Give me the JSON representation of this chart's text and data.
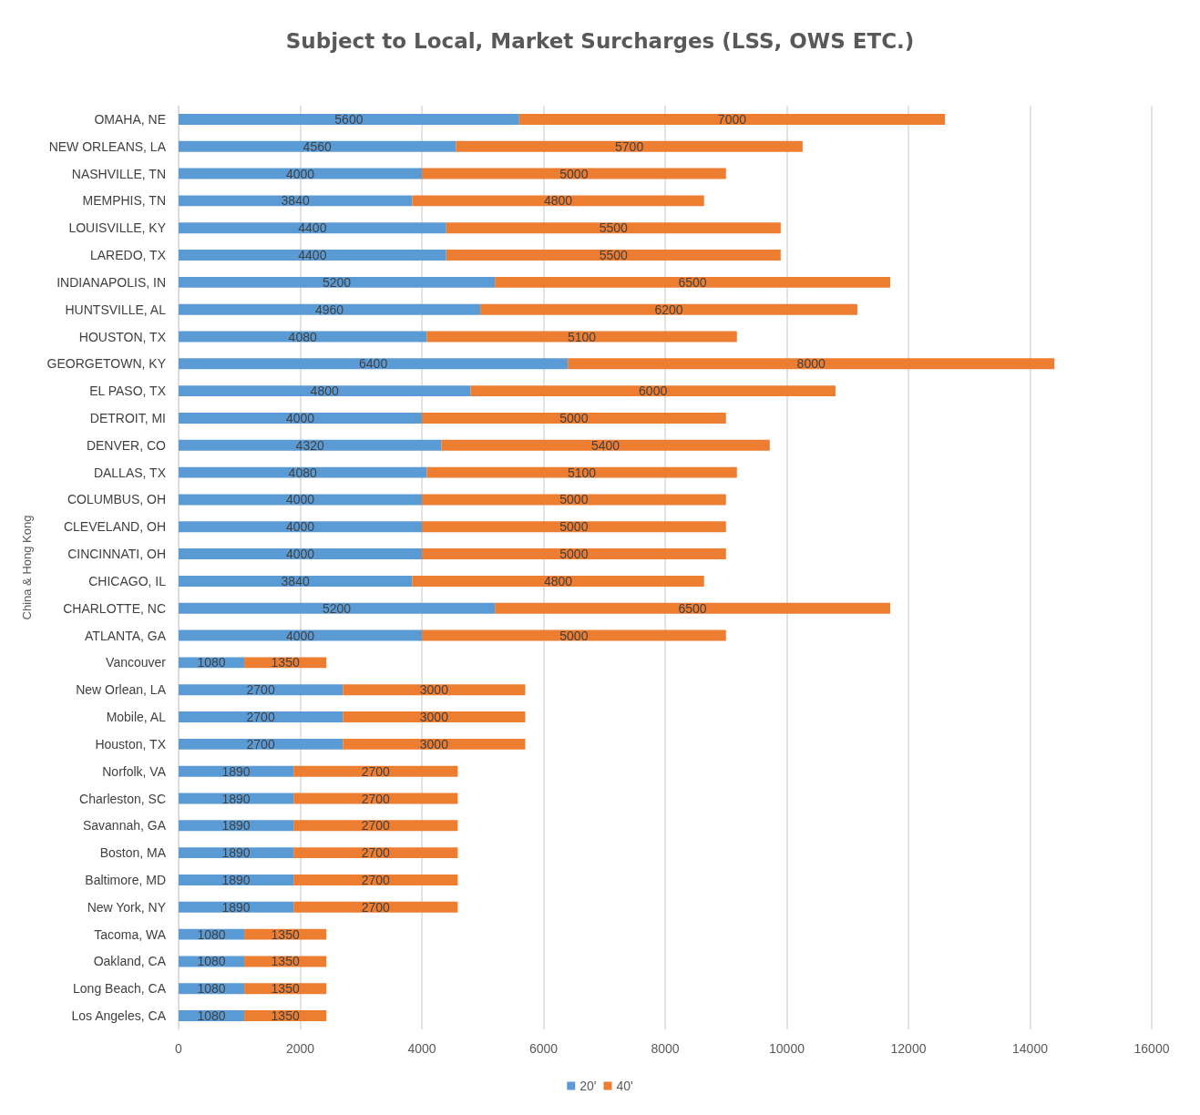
{
  "chart_data": {
    "type": "bar",
    "orientation": "horizontal",
    "stacked": true,
    "title": "Subject to Local, Market Surcharges (LSS, OWS ETC.)",
    "ylabel": "China & Hong Kong",
    "categories": [
      "OMAHA, NE",
      "NEW ORLEANS, LA",
      "NASHVILLE, TN",
      "MEMPHIS, TN",
      "LOUISVILLE, KY",
      "LAREDO, TX",
      "INDIANAPOLIS, IN",
      "HUNTSVILLE, AL",
      "HOUSTON, TX",
      "GEORGETOWN, KY",
      "EL PASO, TX",
      "DETROIT, MI",
      "DENVER, CO",
      "DALLAS, TX",
      "COLUMBUS, OH",
      "CLEVELAND, OH",
      "CINCINNATI, OH",
      "CHICAGO, IL",
      "CHARLOTTE, NC",
      "ATLANTA, GA",
      "Vancouver",
      "New Orlean, LA",
      "Mobile, AL",
      "Houston, TX",
      "Norfolk, VA",
      "Charleston, SC",
      "Savannah, GA",
      "Boston, MA",
      "Baltimore, MD",
      "New York, NY",
      "Tacoma, WA",
      "Oakland, CA",
      "Long Beach, CA",
      "Los Angeles, CA"
    ],
    "series": [
      {
        "name": "20'",
        "color": "#5b9bd5",
        "values": [
          5600,
          4560,
          4000,
          3840,
          4400,
          4400,
          5200,
          4960,
          4080,
          6400,
          4800,
          4000,
          4320,
          4080,
          4000,
          4000,
          4000,
          3840,
          5200,
          4000,
          1080,
          2700,
          2700,
          2700,
          1890,
          1890,
          1890,
          1890,
          1890,
          1890,
          1080,
          1080,
          1080,
          1080
        ]
      },
      {
        "name": "40'",
        "color": "#ed7d31",
        "values": [
          7000,
          5700,
          5000,
          4800,
          5500,
          5500,
          6500,
          6200,
          5100,
          8000,
          6000,
          5000,
          5400,
          5100,
          5000,
          5000,
          5000,
          4800,
          6500,
          5000,
          1350,
          3000,
          3000,
          3000,
          2700,
          2700,
          2700,
          2700,
          2700,
          2700,
          1350,
          1350,
          1350,
          1350
        ]
      }
    ],
    "xlim": [
      0,
      16000
    ],
    "xticks": [
      0,
      2000,
      4000,
      6000,
      8000,
      10000,
      12000,
      14000,
      16000
    ],
    "grid": "x",
    "legend": "bottom",
    "data_labels": true
  }
}
